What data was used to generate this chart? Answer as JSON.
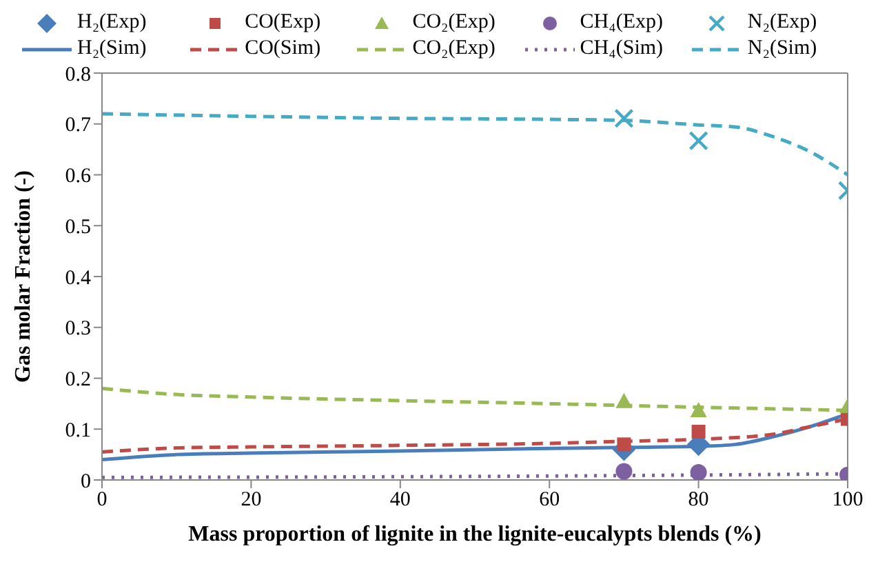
{
  "chart_data": {
    "type": "line",
    "xlabel": "Mass proportion of lignite in the lignite-eucalypts blends (%)",
    "ylabel": "Gas molar Fraction (-)",
    "xlim": [
      0,
      100
    ],
    "xticks": [
      0,
      20,
      40,
      60,
      80,
      100
    ],
    "ylim": [
      0,
      0.8
    ],
    "yticks": [
      0,
      0.1,
      0.2,
      0.3,
      0.4,
      0.5,
      0.6,
      0.7,
      0.8
    ],
    "legend": "top",
    "series": [
      {
        "name": "H₂(Exp)",
        "type": "scatter",
        "marker": "diamond",
        "color": "#4a7ebb",
        "x": [
          70,
          80
        ],
        "values": [
          0.06,
          0.07
        ]
      },
      {
        "name": "CO(Exp)",
        "type": "scatter",
        "marker": "square",
        "color": "#be4b48",
        "x": [
          70,
          80,
          100
        ],
        "values": [
          0.07,
          0.095,
          0.12
        ]
      },
      {
        "name": "CO₂(Exp)",
        "type": "scatter",
        "marker": "triangle",
        "color": "#98b954",
        "x": [
          70,
          80,
          100
        ],
        "values": [
          0.155,
          0.137,
          0.145
        ]
      },
      {
        "name": "CH₄(Exp)",
        "type": "scatter",
        "marker": "circle",
        "color": "#7d60a0",
        "x": [
          70,
          80,
          100
        ],
        "values": [
          0.017,
          0.015,
          0.01
        ]
      },
      {
        "name": "N₂(Exp)",
        "type": "scatter",
        "marker": "cross",
        "color": "#46aac5",
        "x": [
          70,
          80,
          100
        ],
        "values": [
          0.711,
          0.667,
          0.569
        ]
      },
      {
        "name": "H₂(Sim)",
        "line_style": "solid",
        "color": "#4a7ebb",
        "x": [
          0,
          10,
          20,
          40,
          60,
          70,
          80,
          85,
          90,
          95,
          100
        ],
        "values": [
          0.04,
          0.05,
          0.053,
          0.057,
          0.062,
          0.064,
          0.066,
          0.07,
          0.085,
          0.105,
          0.13
        ]
      },
      {
        "name": "CO(Sim)",
        "line_style": "dashed",
        "color": "#be4b48",
        "x": [
          0,
          10,
          20,
          40,
          60,
          70,
          80,
          90,
          95,
          100
        ],
        "values": [
          0.055,
          0.063,
          0.065,
          0.068,
          0.072,
          0.076,
          0.08,
          0.09,
          0.105,
          0.12
        ]
      },
      {
        "name": "CO₂(Exp)",
        "line_style": "dashed",
        "color": "#98b954",
        "x": [
          0,
          10,
          20,
          40,
          60,
          80,
          100
        ],
        "values": [
          0.18,
          0.168,
          0.163,
          0.156,
          0.15,
          0.143,
          0.137
        ]
      },
      {
        "name": "CH₄(Sim)",
        "line_style": "dotted",
        "color": "#7d60a0",
        "x": [
          0,
          50,
          100
        ],
        "values": [
          0.005,
          0.007,
          0.012
        ]
      },
      {
        "name": "N₂(Sim)",
        "line_style": "dashed",
        "color": "#46aac5",
        "x": [
          0,
          20,
          40,
          60,
          70,
          80,
          85,
          90,
          95,
          100
        ],
        "values": [
          0.72,
          0.715,
          0.711,
          0.709,
          0.707,
          0.698,
          0.694,
          0.675,
          0.645,
          0.6
        ]
      }
    ]
  }
}
